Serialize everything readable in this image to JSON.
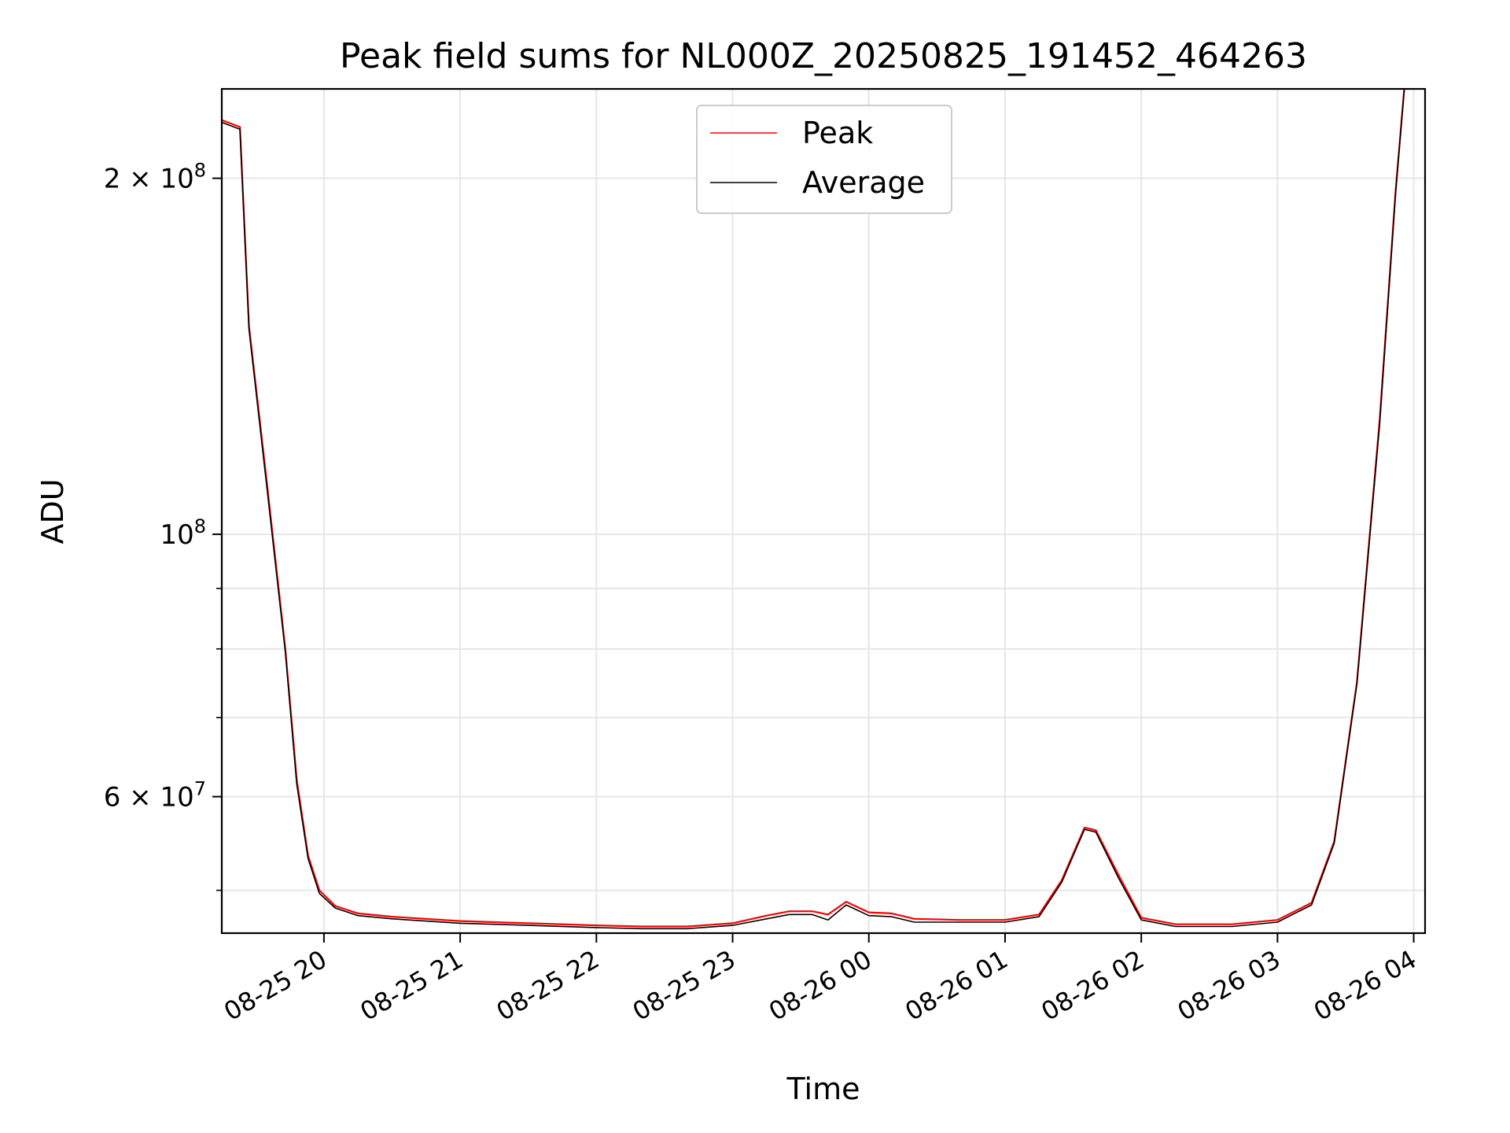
{
  "chart_data": {
    "type": "line",
    "title": "Peak field sums for NL000Z_20250825_191452_464263",
    "xlabel": "Time",
    "ylabel": "ADU",
    "yscale": "log",
    "grid": true,
    "legend_position": "top-center",
    "xlim": [
      "2025-08-25 19:15",
      "2025-08-26 04:05"
    ],
    "ylim": [
      46000000,
      238000000
    ],
    "x_ticks": [
      {
        "t": "2025-08-25 20:00",
        "label": "08-25 20"
      },
      {
        "t": "2025-08-25 21:00",
        "label": "08-25 21"
      },
      {
        "t": "2025-08-25 22:00",
        "label": "08-25 22"
      },
      {
        "t": "2025-08-25 23:00",
        "label": "08-25 23"
      },
      {
        "t": "2025-08-26 00:00",
        "label": "08-26 00"
      },
      {
        "t": "2025-08-26 01:00",
        "label": "08-26 01"
      },
      {
        "t": "2025-08-26 02:00",
        "label": "08-26 02"
      },
      {
        "t": "2025-08-26 03:00",
        "label": "08-26 03"
      },
      {
        "t": "2025-08-26 04:00",
        "label": "08-26 04"
      }
    ],
    "y_major_ticks": [
      {
        "value": 200000000,
        "mantissa": "2",
        "base": "10",
        "exp": "8"
      },
      {
        "value": 100000000,
        "mantissa": "",
        "base": "10",
        "exp": "8"
      },
      {
        "value": 60000000,
        "mantissa": "6",
        "base": "10",
        "exp": "7"
      }
    ],
    "y_minor_ticks": [
      50000000,
      70000000,
      80000000,
      90000000
    ],
    "series": [
      {
        "name": "Peak",
        "color": "#ff0000",
        "x": [
          "2025-08-25 19:15",
          "2025-08-25 19:23",
          "2025-08-25 19:27",
          "2025-08-25 19:35",
          "2025-08-25 19:43",
          "2025-08-25 19:48",
          "2025-08-25 19:53",
          "2025-08-25 19:58",
          "2025-08-25 20:05",
          "2025-08-25 20:15",
          "2025-08-25 20:30",
          "2025-08-25 21:00",
          "2025-08-25 21:30",
          "2025-08-25 22:00",
          "2025-08-25 22:20",
          "2025-08-25 22:40",
          "2025-08-25 23:00",
          "2025-08-25 23:15",
          "2025-08-25 23:25",
          "2025-08-25 23:35",
          "2025-08-25 23:42",
          "2025-08-25 23:50",
          "2025-08-25 23:54",
          "2025-08-26 00:00",
          "2025-08-26 00:10",
          "2025-08-26 00:20",
          "2025-08-26 00:40",
          "2025-08-26 01:00",
          "2025-08-26 01:15",
          "2025-08-26 01:25",
          "2025-08-26 01:35",
          "2025-08-26 01:40",
          "2025-08-26 01:50",
          "2025-08-26 02:00",
          "2025-08-26 02:15",
          "2025-08-26 02:40",
          "2025-08-26 03:00",
          "2025-08-26 03:15",
          "2025-08-26 03:25",
          "2025-08-26 03:35",
          "2025-08-26 03:45",
          "2025-08-26 03:52",
          "2025-08-26 03:56"
        ],
        "values": [
          224000000,
          221000000,
          150000000,
          110000000,
          80000000,
          62000000,
          53500000,
          50000000,
          48500000,
          47800000,
          47500000,
          47100000,
          46900000,
          46700000,
          46600000,
          46600000,
          46900000,
          47600000,
          48000000,
          48000000,
          47700000,
          48900000,
          48500000,
          47900000,
          47800000,
          47300000,
          47200000,
          47200000,
          47700000,
          51000000,
          56500000,
          56200000,
          51500000,
          47400000,
          46800000,
          46800000,
          47200000,
          48800000,
          55000000,
          75000000,
          125000000,
          195000000,
          240000000
        ]
      },
      {
        "name": "Average",
        "color": "#000000",
        "x": [
          "2025-08-25 19:15",
          "2025-08-25 19:23",
          "2025-08-25 19:27",
          "2025-08-25 19:35",
          "2025-08-25 19:43",
          "2025-08-25 19:48",
          "2025-08-25 19:53",
          "2025-08-25 19:58",
          "2025-08-25 20:05",
          "2025-08-25 20:15",
          "2025-08-25 20:30",
          "2025-08-25 21:00",
          "2025-08-25 21:30",
          "2025-08-25 22:00",
          "2025-08-25 22:20",
          "2025-08-25 22:40",
          "2025-08-25 23:00",
          "2025-08-25 23:15",
          "2025-08-25 23:25",
          "2025-08-25 23:35",
          "2025-08-25 23:42",
          "2025-08-25 23:50",
          "2025-08-25 23:54",
          "2025-08-26 00:00",
          "2025-08-26 00:10",
          "2025-08-26 00:20",
          "2025-08-26 00:40",
          "2025-08-26 01:00",
          "2025-08-26 01:15",
          "2025-08-26 01:25",
          "2025-08-26 01:35",
          "2025-08-26 01:40",
          "2025-08-26 01:50",
          "2025-08-26 02:00",
          "2025-08-26 02:15",
          "2025-08-26 02:40",
          "2025-08-26 03:00",
          "2025-08-26 03:15",
          "2025-08-26 03:25",
          "2025-08-26 03:35",
          "2025-08-26 03:45",
          "2025-08-26 03:52",
          "2025-08-26 03:56"
        ],
        "values": [
          223000000,
          220000000,
          149000000,
          109000000,
          79500000,
          61500000,
          53200000,
          49700000,
          48300000,
          47600000,
          47300000,
          46900000,
          46700000,
          46500000,
          46400000,
          46400000,
          46700000,
          47300000,
          47700000,
          47700000,
          47200000,
          48600000,
          48200000,
          47600000,
          47500000,
          47000000,
          47000000,
          47000000,
          47500000,
          50800000,
          56300000,
          56000000,
          51200000,
          47200000,
          46600000,
          46600000,
          47000000,
          48600000,
          54800000,
          74800000,
          124000000,
          194000000,
          240000000
        ]
      }
    ]
  }
}
